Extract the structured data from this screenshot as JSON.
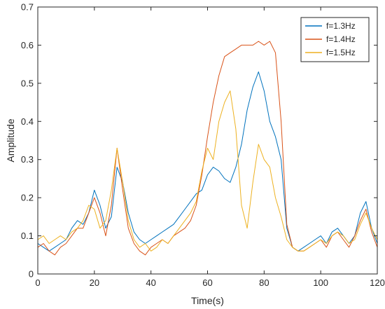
{
  "chart_data": {
    "type": "line",
    "title": "",
    "xlabel": "Time(s)",
    "ylabel": "Amplitude",
    "xlim": [
      0,
      120
    ],
    "ylim": [
      0,
      0.7
    ],
    "xticks": [
      0,
      20,
      40,
      60,
      80,
      100,
      120
    ],
    "xtick_labels": [
      "0",
      "20",
      "40",
      "60",
      "80",
      "100",
      "120"
    ],
    "yticks": [
      0,
      0.1,
      0.2,
      0.3,
      0.4,
      0.5,
      0.6,
      0.7
    ],
    "ytick_labels": [
      "0",
      "0.1",
      "0.2",
      "0.3",
      "0.4",
      "0.5",
      "0.6",
      "0.7"
    ],
    "grid": false,
    "legend_position": "top-right",
    "series": [
      {
        "name": "f=1.3Hz",
        "color": "#0072BD",
        "x": [
          0,
          2,
          4,
          6,
          8,
          10,
          12,
          14,
          16,
          18,
          20,
          22,
          24,
          26,
          28,
          30,
          32,
          34,
          36,
          38,
          40,
          42,
          44,
          46,
          48,
          50,
          52,
          54,
          56,
          58,
          60,
          62,
          64,
          66,
          68,
          70,
          72,
          74,
          76,
          78,
          80,
          82,
          84,
          86,
          88,
          90,
          92,
          94,
          96,
          98,
          100,
          102,
          104,
          106,
          108,
          110,
          112,
          114,
          116,
          118,
          120
        ],
        "y": [
          0.08,
          0.07,
          0.06,
          0.07,
          0.08,
          0.09,
          0.12,
          0.14,
          0.13,
          0.16,
          0.22,
          0.18,
          0.12,
          0.15,
          0.28,
          0.24,
          0.16,
          0.11,
          0.09,
          0.08,
          0.09,
          0.1,
          0.11,
          0.12,
          0.13,
          0.15,
          0.17,
          0.19,
          0.21,
          0.22,
          0.26,
          0.28,
          0.27,
          0.25,
          0.24,
          0.28,
          0.34,
          0.43,
          0.49,
          0.53,
          0.48,
          0.4,
          0.36,
          0.3,
          0.12,
          0.07,
          0.06,
          0.07,
          0.08,
          0.09,
          0.1,
          0.08,
          0.11,
          0.12,
          0.1,
          0.08,
          0.1,
          0.16,
          0.19,
          0.12,
          0.08
        ]
      },
      {
        "name": "f=1.4Hz",
        "color": "#D95319",
        "x": [
          0,
          2,
          4,
          6,
          8,
          10,
          12,
          14,
          16,
          18,
          20,
          22,
          24,
          26,
          28,
          30,
          32,
          34,
          36,
          38,
          40,
          42,
          44,
          46,
          48,
          50,
          52,
          54,
          56,
          58,
          60,
          62,
          64,
          66,
          68,
          70,
          72,
          74,
          76,
          78,
          80,
          82,
          84,
          86,
          88,
          90,
          92,
          94,
          96,
          98,
          100,
          102,
          104,
          106,
          108,
          110,
          112,
          114,
          116,
          118,
          120
        ],
        "y": [
          0.07,
          0.08,
          0.06,
          0.05,
          0.07,
          0.08,
          0.1,
          0.12,
          0.12,
          0.16,
          0.2,
          0.16,
          0.1,
          0.18,
          0.33,
          0.22,
          0.12,
          0.08,
          0.06,
          0.05,
          0.07,
          0.08,
          0.09,
          0.08,
          0.1,
          0.11,
          0.12,
          0.14,
          0.18,
          0.26,
          0.36,
          0.45,
          0.52,
          0.57,
          0.58,
          0.59,
          0.6,
          0.6,
          0.6,
          0.61,
          0.6,
          0.61,
          0.58,
          0.4,
          0.13,
          0.07,
          0.06,
          0.06,
          0.07,
          0.08,
          0.09,
          0.07,
          0.1,
          0.11,
          0.09,
          0.07,
          0.1,
          0.14,
          0.17,
          0.11,
          0.07
        ]
      },
      {
        "name": "f=1.5Hz",
        "color": "#EDB120",
        "x": [
          0,
          2,
          4,
          6,
          8,
          10,
          12,
          14,
          16,
          18,
          20,
          22,
          24,
          26,
          28,
          30,
          32,
          34,
          36,
          38,
          40,
          42,
          44,
          46,
          48,
          50,
          52,
          54,
          56,
          58,
          60,
          62,
          64,
          66,
          68,
          70,
          72,
          74,
          76,
          78,
          80,
          82,
          84,
          86,
          88,
          90,
          92,
          94,
          96,
          98,
          100,
          102,
          104,
          106,
          108,
          110,
          112,
          114,
          116,
          118,
          120
        ],
        "y": [
          0.09,
          0.1,
          0.08,
          0.09,
          0.1,
          0.09,
          0.11,
          0.12,
          0.14,
          0.18,
          0.17,
          0.12,
          0.14,
          0.22,
          0.33,
          0.24,
          0.14,
          0.09,
          0.07,
          0.08,
          0.06,
          0.07,
          0.09,
          0.08,
          0.1,
          0.12,
          0.14,
          0.16,
          0.19,
          0.27,
          0.33,
          0.3,
          0.4,
          0.45,
          0.48,
          0.38,
          0.18,
          0.12,
          0.24,
          0.34,
          0.3,
          0.28,
          0.2,
          0.15,
          0.09,
          0.07,
          0.06,
          0.06,
          0.07,
          0.08,
          0.09,
          0.08,
          0.1,
          0.11,
          0.1,
          0.08,
          0.09,
          0.13,
          0.16,
          0.12,
          0.09
        ]
      }
    ]
  }
}
